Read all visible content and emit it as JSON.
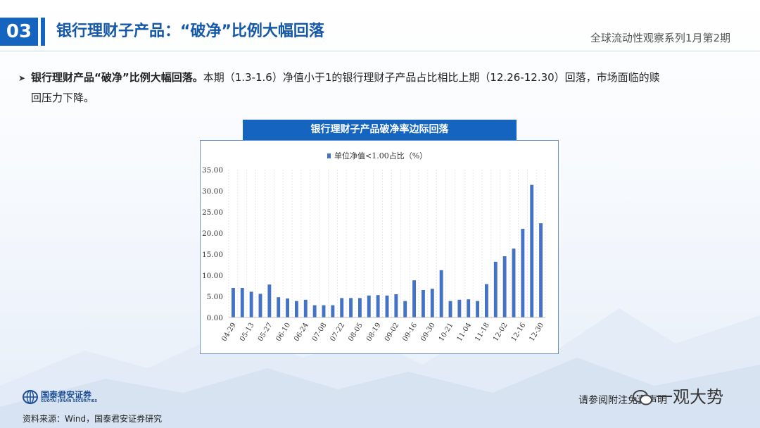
{
  "header": {
    "section_number": "03",
    "title": "银行理财子产品：“破净”比例大幅回落",
    "series": "全球流动性观察系列1月第2期"
  },
  "bullet": {
    "bold": "银行理财产品“破净”比例大幅回落。",
    "text": "本期（1.3-1.6）净值小于1的银行理财子产品占比相比上期（12.26-12.30）回落，市场面临的赎",
    "text2": "回压力下降。"
  },
  "chart_banner": "银行理财子产品破净率边际回落",
  "chart_data": {
    "type": "bar",
    "legend": "单位净值<1.00占比（%）",
    "legend_position": "top-center",
    "color": "#4472c4",
    "ylim": [
      0,
      35
    ],
    "y_ticks": [
      "35.00",
      "30.00",
      "25.00",
      "20.00",
      "15.00",
      "10.00",
      "5.00",
      "0.00"
    ],
    "grid": "vertical dashed",
    "x_tick_labels": [
      "04-29",
      "05-13",
      "05-27",
      "06-10",
      "06-24",
      "07-08",
      "07-22",
      "08-05",
      "08-19",
      "09-02",
      "09-16",
      "09-30",
      "10-21",
      "11-04",
      "11-18",
      "12-02",
      "12-16",
      "12-30"
    ],
    "values": [
      7.0,
      7.0,
      6.1,
      5.6,
      7.8,
      4.8,
      4.5,
      3.9,
      4.2,
      2.9,
      2.9,
      2.9,
      4.6,
      4.6,
      4.6,
      5.2,
      5.3,
      5.2,
      5.5,
      3.9,
      8.8,
      6.5,
      6.8,
      11.2,
      3.9,
      4.2,
      4.3,
      3.9,
      7.9,
      13.2,
      14.5,
      16.3,
      21.0,
      31.4,
      22.3
    ]
  },
  "footer": {
    "logo_cn": "国泰君安证券",
    "logo_en": "GUOTAI JUNAN SECURITIES",
    "source": "资料来源：Wind，国泰君安证券研究",
    "disclaimer": "请参阅附注免责声明",
    "watermark": "一观大势"
  }
}
